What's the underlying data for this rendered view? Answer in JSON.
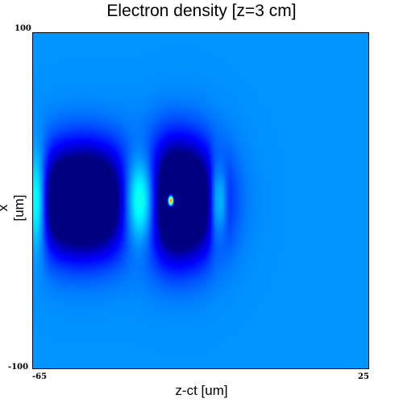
{
  "chart_data": {
    "type": "heatmap",
    "title": "Electron density [z=3 cm]",
    "xlabel": "z-ct [um]",
    "ylabel": "x [um]",
    "xlim": [
      -65,
      25
    ],
    "ylim": [
      -100,
      100
    ],
    "x_ticks": [
      "-65",
      "25"
    ],
    "y_ticks": [
      "100",
      "-100"
    ],
    "colormap": "jet",
    "colors": {
      "background_level": "#0b3fd8",
      "cavity": "#000570",
      "sheath": "#22f0e6",
      "injected_bunch": "#ff2020"
    },
    "features": [
      {
        "kind": "sheath",
        "z": -64,
        "x": 0,
        "sz": 2.0,
        "sx": 20,
        "amp": 0.35
      },
      {
        "kind": "cavity",
        "z": -52,
        "x": 0,
        "sz": 9.5,
        "sx": 22,
        "amp": -0.55
      },
      {
        "kind": "sheath",
        "z": -36,
        "x": 0,
        "sz": 3.8,
        "sx": 19,
        "amp": 0.48
      },
      {
        "kind": "cavity",
        "z": -26,
        "x": 0,
        "sz": 7.5,
        "sx": 24,
        "amp": -0.55
      },
      {
        "kind": "sheath",
        "z": -16,
        "x": 0,
        "sz": 1.3,
        "sx": 17,
        "amp": 0.22
      },
      {
        "kind": "sheath",
        "z": -14,
        "x": 0,
        "sz": 0.9,
        "sx": 14,
        "amp": 0.1
      },
      {
        "kind": "bunch",
        "z": -28,
        "x": 0,
        "sz": 0.6,
        "sx": 2.5,
        "amp": 1.0
      }
    ]
  }
}
